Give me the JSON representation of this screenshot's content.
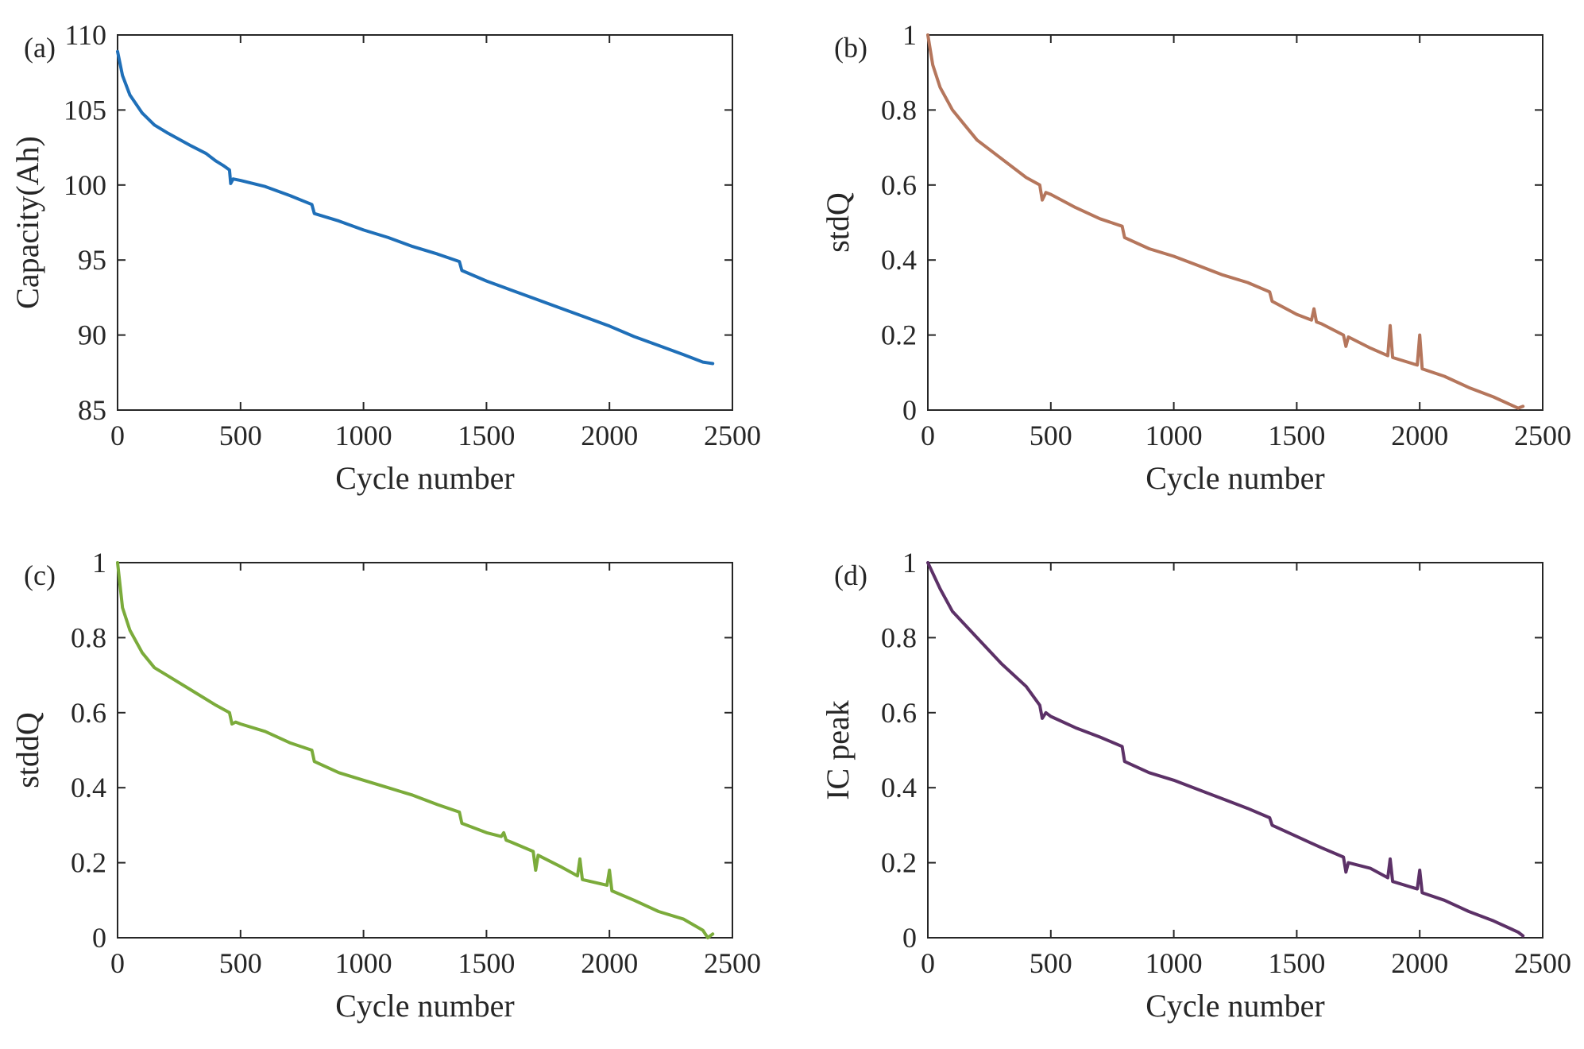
{
  "chart_data": [
    {
      "panel": "(a)",
      "type": "line",
      "color": "#1f6fb8",
      "xlabel": "Cycle number",
      "ylabel": "Capacity(Ah)",
      "xlim": [
        0,
        2500
      ],
      "ylim": [
        85,
        110
      ],
      "xticks": [
        "0",
        "500",
        "1000",
        "1500",
        "2000",
        "2500"
      ],
      "yticks": [
        "85",
        "90",
        "95",
        "100",
        "105",
        "110"
      ],
      "series": [
        {
          "name": "Capacity",
          "x": [
            0,
            20,
            50,
            100,
            150,
            200,
            300,
            360,
            400,
            430,
            455,
            460,
            470,
            500,
            600,
            700,
            790,
            800,
            900,
            1000,
            1100,
            1200,
            1300,
            1390,
            1400,
            1500,
            1600,
            1700,
            1800,
            1900,
            2000,
            2100,
            2200,
            2300,
            2380,
            2420
          ],
          "y": [
            108.9,
            107.3,
            106.0,
            104.8,
            104.0,
            103.5,
            102.6,
            102.1,
            101.6,
            101.3,
            101.0,
            100.1,
            100.4,
            100.3,
            99.9,
            99.3,
            98.7,
            98.1,
            97.6,
            97.0,
            96.5,
            95.9,
            95.4,
            94.9,
            94.3,
            93.6,
            93.0,
            92.4,
            91.8,
            91.2,
            90.6,
            89.9,
            89.3,
            88.7,
            88.2,
            88.1
          ]
        }
      ]
    },
    {
      "panel": "(b)",
      "type": "line",
      "color": "#b5765c",
      "xlabel": "Cycle number",
      "ylabel": "stdQ",
      "xlim": [
        0,
        2500
      ],
      "ylim": [
        0,
        1
      ],
      "xticks": [
        "0",
        "500",
        "1000",
        "1500",
        "2000",
        "2500"
      ],
      "yticks": [
        "0",
        "0.2",
        "0.4",
        "0.6",
        "0.8",
        "1"
      ],
      "series": [
        {
          "name": "stdQ",
          "x": [
            0,
            20,
            50,
            100,
            150,
            200,
            300,
            400,
            455,
            465,
            480,
            500,
            600,
            700,
            790,
            800,
            900,
            1000,
            1100,
            1200,
            1300,
            1390,
            1400,
            1500,
            1560,
            1570,
            1580,
            1600,
            1690,
            1700,
            1710,
            1800,
            1870,
            1880,
            1890,
            1990,
            2000,
            2010,
            2100,
            2200,
            2300,
            2400,
            2420
          ],
          "y": [
            1.0,
            0.92,
            0.86,
            0.8,
            0.76,
            0.72,
            0.67,
            0.62,
            0.6,
            0.56,
            0.58,
            0.575,
            0.54,
            0.51,
            0.49,
            0.46,
            0.43,
            0.41,
            0.385,
            0.36,
            0.34,
            0.315,
            0.29,
            0.255,
            0.24,
            0.27,
            0.235,
            0.23,
            0.2,
            0.17,
            0.195,
            0.165,
            0.145,
            0.225,
            0.14,
            0.12,
            0.2,
            0.11,
            0.09,
            0.06,
            0.035,
            0.005,
            0.01
          ]
        }
      ]
    },
    {
      "panel": "(c)",
      "type": "line",
      "color": "#7bab3b",
      "xlabel": "Cycle number",
      "ylabel": "stddQ",
      "xlim": [
        0,
        2500
      ],
      "ylim": [
        0,
        1
      ],
      "xticks": [
        "0",
        "500",
        "1000",
        "1500",
        "2000",
        "2500"
      ],
      "yticks": [
        "0",
        "0.2",
        "0.4",
        "0.6",
        "0.8",
        "1"
      ],
      "series": [
        {
          "name": "stddQ",
          "x": [
            0,
            20,
            50,
            100,
            150,
            200,
            300,
            400,
            455,
            465,
            480,
            500,
            600,
            700,
            790,
            800,
            900,
            1000,
            1100,
            1200,
            1300,
            1390,
            1400,
            1500,
            1560,
            1570,
            1580,
            1600,
            1690,
            1700,
            1710,
            1800,
            1870,
            1880,
            1890,
            1990,
            2000,
            2010,
            2100,
            2200,
            2300,
            2380,
            2400,
            2420
          ],
          "y": [
            1.0,
            0.88,
            0.82,
            0.76,
            0.72,
            0.7,
            0.66,
            0.62,
            0.6,
            0.57,
            0.575,
            0.57,
            0.55,
            0.52,
            0.5,
            0.47,
            0.44,
            0.42,
            0.4,
            0.38,
            0.355,
            0.335,
            0.305,
            0.28,
            0.27,
            0.28,
            0.26,
            0.255,
            0.23,
            0.18,
            0.22,
            0.19,
            0.165,
            0.21,
            0.155,
            0.14,
            0.18,
            0.125,
            0.1,
            0.07,
            0.05,
            0.02,
            0.0,
            0.01
          ]
        }
      ]
    },
    {
      "panel": "(d)",
      "type": "line",
      "color": "#5c3167",
      "xlabel": "Cycle number",
      "ylabel": "IC peak",
      "xlim": [
        0,
        2500
      ],
      "ylim": [
        0,
        1
      ],
      "xticks": [
        "0",
        "500",
        "1000",
        "1500",
        "2000",
        "2500"
      ],
      "yticks": [
        "0",
        "0.2",
        "0.4",
        "0.6",
        "0.8",
        "1"
      ],
      "series": [
        {
          "name": "IC peak",
          "x": [
            0,
            50,
            100,
            200,
            300,
            400,
            455,
            465,
            480,
            500,
            600,
            700,
            790,
            800,
            900,
            1000,
            1100,
            1200,
            1300,
            1390,
            1400,
            1500,
            1600,
            1690,
            1700,
            1710,
            1800,
            1870,
            1880,
            1890,
            1990,
            2000,
            2010,
            2100,
            2200,
            2300,
            2400,
            2420
          ],
          "y": [
            1.0,
            0.93,
            0.87,
            0.8,
            0.73,
            0.67,
            0.62,
            0.585,
            0.6,
            0.59,
            0.56,
            0.535,
            0.51,
            0.47,
            0.44,
            0.42,
            0.395,
            0.37,
            0.345,
            0.32,
            0.3,
            0.27,
            0.24,
            0.215,
            0.175,
            0.2,
            0.185,
            0.16,
            0.21,
            0.15,
            0.13,
            0.18,
            0.12,
            0.1,
            0.07,
            0.045,
            0.015,
            0.005
          ]
        }
      ]
    }
  ]
}
